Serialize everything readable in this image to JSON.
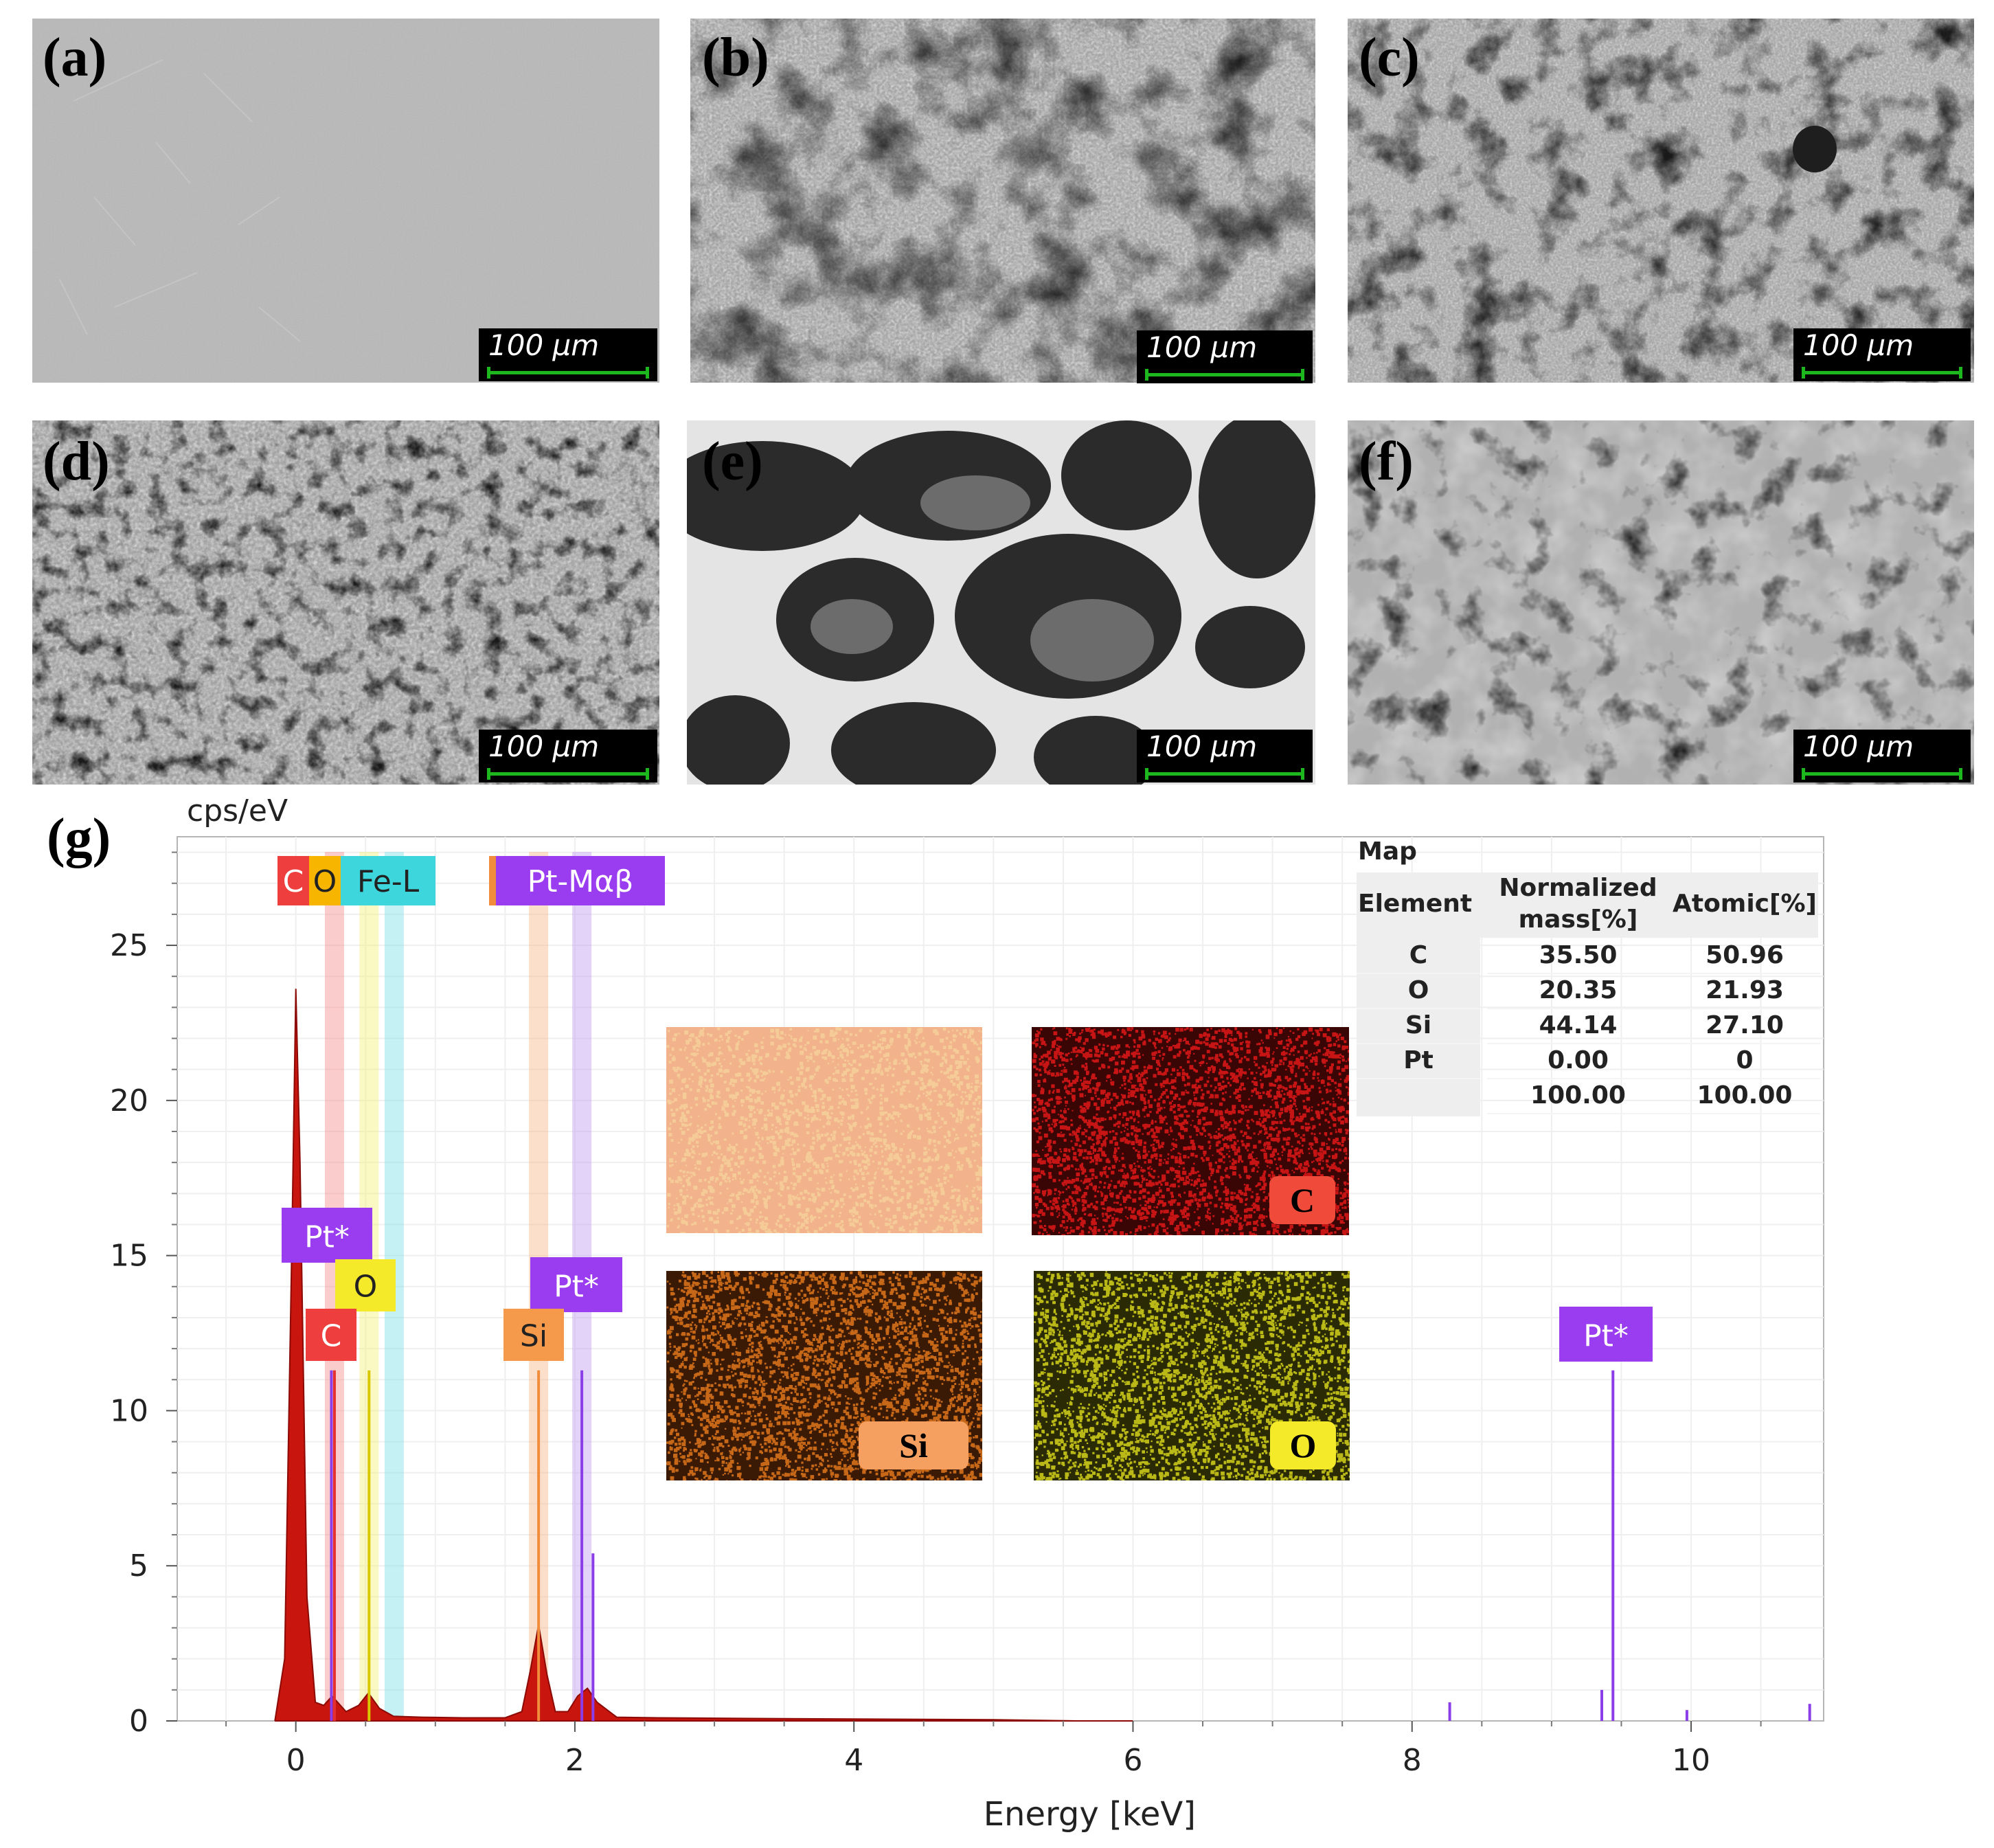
{
  "panels": [
    {
      "label": "(a)",
      "scale": "100 μm"
    },
    {
      "label": "(b)",
      "scale": "100 μm"
    },
    {
      "label": "(c)",
      "scale": "100 μm"
    },
    {
      "label": "(d)",
      "scale": "100 μm"
    },
    {
      "label": "(e)",
      "scale": "100 μm"
    },
    {
      "label": "(f)",
      "scale": "100 μm"
    }
  ],
  "chart_label": "(g)",
  "chart_data": {
    "type": "line",
    "ylabel": "cps/eV",
    "xlabel": "Energy [keV]",
    "xlim": [
      -0.85,
      10.95
    ],
    "ylim": [
      0,
      28.5
    ],
    "xticks": [
      0,
      2,
      4,
      6,
      8,
      10
    ],
    "yticks": [
      0,
      5,
      10,
      15,
      20,
      25
    ],
    "spectrum": {
      "x": [
        -0.15,
        -0.08,
        -0.03,
        0.0,
        0.03,
        0.08,
        0.14,
        0.2,
        0.26,
        0.3,
        0.36,
        0.45,
        0.52,
        0.6,
        0.7,
        0.9,
        1.2,
        1.5,
        1.62,
        1.68,
        1.74,
        1.8,
        1.86,
        1.95,
        2.02,
        2.09,
        2.16,
        2.3,
        2.6,
        3.2,
        4.0,
        5.0,
        5.6,
        6.0
      ],
      "y": [
        0,
        2.0,
        15.0,
        23.6,
        18.0,
        4.0,
        0.6,
        0.5,
        0.8,
        0.6,
        0.3,
        0.5,
        0.9,
        0.4,
        0.15,
        0.12,
        0.1,
        0.1,
        0.3,
        1.6,
        3.1,
        1.5,
        0.3,
        0.3,
        0.8,
        1.05,
        0.6,
        0.12,
        0.1,
        0.08,
        0.06,
        0.04,
        0.0,
        0.0
      ]
    },
    "element_bands": [
      {
        "element": "C",
        "energy": 0.277,
        "color": "#f78f8f"
      },
      {
        "element": "O",
        "energy": 0.525,
        "color": "#f5ef7a"
      },
      {
        "element": "Fe-L",
        "energy": 0.705,
        "color": "#7fe0e6"
      },
      {
        "element": "Si",
        "energy": 1.74,
        "color": "#f7b98a"
      },
      {
        "element": "Pt-Mαβ",
        "energy": 2.05,
        "color": "#c49ef0"
      }
    ],
    "peak_lines": [
      {
        "element": "C",
        "energy": 0.277,
        "height": 11.3,
        "color": "#e53030"
      },
      {
        "element": "O",
        "energy": 0.525,
        "height": 11.3,
        "color": "#d8c800"
      },
      {
        "element": "Si",
        "energy": 1.74,
        "height": 11.3,
        "color": "#f08c3c"
      },
      {
        "element": "Pt*",
        "energy": 2.05,
        "height": 11.3,
        "color": "#8b3ee8"
      },
      {
        "element": "Pt*",
        "energy": 2.13,
        "height": 5.4,
        "color": "#8b3ee8"
      },
      {
        "element": "Pt*",
        "energy": 9.44,
        "height": 11.3,
        "color": "#8b3ee8"
      },
      {
        "element": "Pt*",
        "energy": 9.36,
        "height": 1.0,
        "color": "#8b3ee8"
      },
      {
        "element": "Pt*",
        "energy": 8.27,
        "height": 0.6,
        "color": "#8b3ee8"
      },
      {
        "element": "Pt*",
        "energy": 9.97,
        "height": 0.35,
        "color": "#8b3ee8"
      },
      {
        "element": "Pt*",
        "energy": 10.85,
        "height": 0.55,
        "color": "#8b3ee8"
      },
      {
        "element": "Pt*",
        "energy": 0.255,
        "height": 11.3,
        "color": "#8b3ee8"
      }
    ],
    "top_labels": [
      {
        "text": "C",
        "color": "#ef3e3e",
        "textcolor": "#ffffff"
      },
      {
        "text": "O",
        "color": "#f7b500",
        "textcolor": "#222222"
      },
      {
        "text": "Fe-L",
        "color": "#3cd6dc",
        "textcolor": "#222222"
      },
      {
        "text": "Pt-Mαβ",
        "color": "#9a3cf0",
        "textcolor": "#ffffff"
      }
    ],
    "peak_labels": [
      {
        "text": "Pt*",
        "color": "#9a3cf0",
        "textcolor": "#ffffff"
      },
      {
        "text": "O",
        "color": "#f4ea2a",
        "textcolor": "#222222"
      },
      {
        "text": "C",
        "color": "#ef3e3e",
        "textcolor": "#ffffff"
      },
      {
        "text": "Pt*",
        "color": "#9a3cf0",
        "textcolor": "#ffffff"
      },
      {
        "text": "Si",
        "color": "#f59a4a",
        "textcolor": "#222222"
      },
      {
        "text": "Pt*",
        "color": "#9a3cf0",
        "textcolor": "#ffffff"
      }
    ]
  },
  "table": {
    "title": "Map",
    "headers": [
      "Element",
      "Normalized mass[%]",
      "Atomic[%]"
    ],
    "rows": [
      [
        "C",
        "35.50",
        "50.96"
      ],
      [
        "O",
        "20.35",
        "21.93"
      ],
      [
        "Si",
        "44.14",
        "27.10"
      ],
      [
        "Pt",
        "0.00",
        "0"
      ],
      [
        "",
        "100.00",
        "100.00"
      ]
    ]
  },
  "maps": [
    {
      "label": "",
      "base": "#f2b38c",
      "dot": "#f7d79c"
    },
    {
      "label": "C",
      "base": "#3a0505",
      "dot": "#e01818",
      "badge": "#f04a3a"
    },
    {
      "label": "Si",
      "base": "#3a1a05",
      "dot": "#e0761c",
      "badge": "#f5a060"
    },
    {
      "label": "O",
      "base": "#2a2a05",
      "dot": "#d4d21c",
      "badge": "#f4ea2a"
    }
  ]
}
